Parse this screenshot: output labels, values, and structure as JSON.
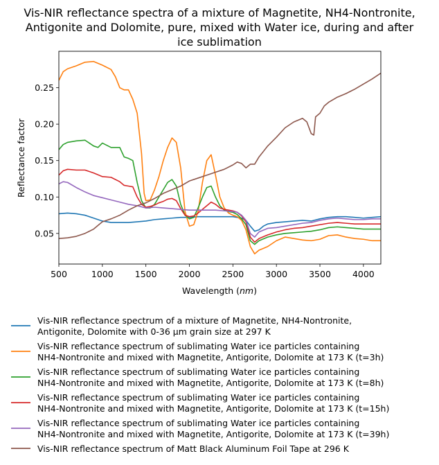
{
  "chart_data": {
    "type": "line",
    "title_lines": [
      "Vis-NIR reflectance spectra of a mixture of Magnetite, NH4-Nontronite,",
      "Antigonite and Dolomite, pure, mixed with Water ice, during and after",
      "ice sublimation"
    ],
    "xlabel": "Wavelength (nm)",
    "ylabel": "Reflectance factor",
    "xlim": [
      500,
      4200
    ],
    "ylim": [
      0.008,
      0.3
    ],
    "xticks": [
      500,
      1000,
      1500,
      2000,
      2500,
      3000,
      3500,
      4000
    ],
    "yticks": [
      0.05,
      0.1,
      0.15,
      0.2,
      0.25
    ],
    "ytick_labels": [
      "0.05",
      "0.10",
      "0.15",
      "0.20",
      "0.25"
    ],
    "grid": false,
    "legend_placement": "below",
    "series": [
      {
        "name_lines": [
          "Vis-NIR reflectance spectrum of a mixture of Magnetite, NH4-Nontronite,",
          "Antigonite, Dolomite with 0-36 µm grain size at 297 K"
        ],
        "color": "#1f77b4",
        "x": [
          500,
          600,
          700,
          800,
          900,
          1000,
          1100,
          1200,
          1300,
          1400,
          1500,
          1600,
          1700,
          1800,
          1900,
          2000,
          2100,
          2200,
          2300,
          2400,
          2500,
          2600,
          2650,
          2700,
          2750,
          2800,
          2850,
          2900,
          3000,
          3100,
          3200,
          3300,
          3400,
          3500,
          3600,
          3700,
          3800,
          3900,
          4000,
          4100,
          4200
        ],
        "y": [
          0.077,
          0.078,
          0.077,
          0.075,
          0.071,
          0.067,
          0.065,
          0.065,
          0.065,
          0.066,
          0.067,
          0.069,
          0.07,
          0.071,
          0.072,
          0.072,
          0.073,
          0.073,
          0.073,
          0.073,
          0.073,
          0.071,
          0.068,
          0.06,
          0.053,
          0.055,
          0.06,
          0.063,
          0.065,
          0.066,
          0.067,
          0.068,
          0.067,
          0.07,
          0.072,
          0.073,
          0.073,
          0.072,
          0.071,
          0.072,
          0.073
        ]
      },
      {
        "name_lines": [
          "Vis-NIR reflectance spectrum of sublimating Water ice particles containing",
          "NH4-Nontronite and mixed with Magnetite, Antigorite, Dolomite at 173 K (t=3h)"
        ],
        "color": "#ff7f0e",
        "x": [
          500,
          550,
          600,
          700,
          800,
          900,
          1000,
          1100,
          1150,
          1200,
          1250,
          1300,
          1350,
          1400,
          1450,
          1480,
          1500,
          1550,
          1600,
          1650,
          1700,
          1750,
          1800,
          1850,
          1900,
          1950,
          2000,
          2050,
          2100,
          2150,
          2200,
          2250,
          2300,
          2350,
          2400,
          2450,
          2500,
          2550,
          2600,
          2650,
          2700,
          2750,
          2800,
          2900,
          3000,
          3100,
          3200,
          3300,
          3400,
          3500,
          3600,
          3700,
          3800,
          3900,
          4000,
          4100,
          4200
        ],
        "y": [
          0.26,
          0.272,
          0.276,
          0.28,
          0.285,
          0.286,
          0.281,
          0.275,
          0.265,
          0.25,
          0.247,
          0.247,
          0.234,
          0.215,
          0.16,
          0.105,
          0.095,
          0.096,
          0.11,
          0.128,
          0.15,
          0.168,
          0.181,
          0.175,
          0.14,
          0.08,
          0.06,
          0.062,
          0.08,
          0.12,
          0.15,
          0.158,
          0.13,
          0.1,
          0.085,
          0.078,
          0.075,
          0.073,
          0.068,
          0.055,
          0.032,
          0.022,
          0.027,
          0.032,
          0.04,
          0.045,
          0.043,
          0.041,
          0.04,
          0.042,
          0.047,
          0.048,
          0.045,
          0.043,
          0.042,
          0.04,
          0.04
        ]
      },
      {
        "name_lines": [
          "Vis-NIR reflectance spectrum of sublimating Water ice particles containing",
          "NH4-Nontronite and mixed with Magnetite, Antigorite, Dolomite at 173 K (t=8h)"
        ],
        "color": "#2ca02c",
        "x": [
          500,
          550,
          600,
          700,
          800,
          900,
          950,
          1000,
          1100,
          1200,
          1250,
          1300,
          1350,
          1400,
          1450,
          1500,
          1550,
          1600,
          1650,
          1700,
          1750,
          1800,
          1850,
          1900,
          1950,
          2000,
          2050,
          2100,
          2150,
          2200,
          2250,
          2300,
          2350,
          2400,
          2450,
          2500,
          2550,
          2600,
          2650,
          2700,
          2750,
          2800,
          2900,
          3000,
          3100,
          3200,
          3300,
          3400,
          3500,
          3600,
          3700,
          3800,
          3900,
          4000,
          4100,
          4200
        ],
        "y": [
          0.165,
          0.172,
          0.175,
          0.177,
          0.178,
          0.17,
          0.168,
          0.174,
          0.168,
          0.168,
          0.155,
          0.153,
          0.15,
          0.12,
          0.095,
          0.085,
          0.085,
          0.09,
          0.1,
          0.11,
          0.12,
          0.124,
          0.115,
          0.09,
          0.075,
          0.07,
          0.072,
          0.085,
          0.1,
          0.113,
          0.115,
          0.1,
          0.088,
          0.082,
          0.08,
          0.079,
          0.076,
          0.07,
          0.062,
          0.04,
          0.035,
          0.04,
          0.045,
          0.048,
          0.05,
          0.051,
          0.052,
          0.053,
          0.055,
          0.058,
          0.059,
          0.058,
          0.057,
          0.056,
          0.056,
          0.056
        ]
      },
      {
        "name_lines": [
          "Vis-NIR reflectance spectrum of sublimating Water ice particles containing",
          "NH4-Nontronite and mixed with Magnetite, Antigorite, Dolomite at 173 K (t=15h)"
        ],
        "color": "#d62728",
        "x": [
          500,
          550,
          600,
          700,
          800,
          900,
          1000,
          1100,
          1200,
          1250,
          1300,
          1350,
          1400,
          1450,
          1500,
          1550,
          1600,
          1650,
          1700,
          1750,
          1800,
          1850,
          1900,
          1950,
          2000,
          2050,
          2100,
          2150,
          2200,
          2250,
          2300,
          2350,
          2400,
          2450,
          2500,
          2550,
          2600,
          2650,
          2700,
          2750,
          2800,
          2900,
          3000,
          3100,
          3200,
          3300,
          3400,
          3500,
          3600,
          3700,
          3800,
          3900,
          4000,
          4100,
          4200
        ],
        "y": [
          0.13,
          0.136,
          0.138,
          0.137,
          0.137,
          0.133,
          0.128,
          0.127,
          0.121,
          0.116,
          0.115,
          0.114,
          0.1,
          0.09,
          0.086,
          0.087,
          0.089,
          0.092,
          0.094,
          0.097,
          0.098,
          0.095,
          0.084,
          0.075,
          0.073,
          0.074,
          0.078,
          0.083,
          0.088,
          0.093,
          0.09,
          0.085,
          0.083,
          0.082,
          0.081,
          0.079,
          0.074,
          0.066,
          0.045,
          0.038,
          0.043,
          0.048,
          0.052,
          0.055,
          0.057,
          0.058,
          0.06,
          0.062,
          0.064,
          0.065,
          0.064,
          0.063,
          0.063,
          0.063,
          0.063
        ]
      },
      {
        "name_lines": [
          "Vis-NIR reflectance spectrum of sublimating Water ice particles containing",
          "NH4-Nontronite and mixed with Magnetite, Antigorite, Dolomite at 173 K (t=39h)"
        ],
        "color": "#9467bd",
        "x": [
          500,
          550,
          600,
          700,
          800,
          900,
          1000,
          1100,
          1200,
          1300,
          1400,
          1500,
          1600,
          1700,
          1800,
          1900,
          2000,
          2100,
          2200,
          2300,
          2400,
          2500,
          2550,
          2600,
          2650,
          2700,
          2750,
          2800,
          2900,
          3000,
          3100,
          3200,
          3300,
          3400,
          3500,
          3600,
          3700,
          3800,
          3900,
          4000,
          4100,
          4200
        ],
        "y": [
          0.118,
          0.121,
          0.12,
          0.113,
          0.107,
          0.102,
          0.099,
          0.096,
          0.093,
          0.09,
          0.088,
          0.085,
          0.086,
          0.085,
          0.084,
          0.083,
          0.082,
          0.082,
          0.082,
          0.082,
          0.081,
          0.08,
          0.079,
          0.075,
          0.068,
          0.05,
          0.045,
          0.052,
          0.057,
          0.058,
          0.06,
          0.062,
          0.064,
          0.065,
          0.068,
          0.07,
          0.071,
          0.07,
          0.069,
          0.069,
          0.07,
          0.07
        ]
      },
      {
        "name_lines": [
          "Vis-NIR reflectance spectrum of Matt Black Aluminum Foil Tape at 296 K"
        ],
        "color": "#8c564b",
        "x": [
          500,
          600,
          700,
          800,
          900,
          1000,
          1100,
          1200,
          1300,
          1400,
          1500,
          1600,
          1700,
          1800,
          1900,
          2000,
          2100,
          2200,
          2300,
          2400,
          2500,
          2550,
          2600,
          2650,
          2700,
          2750,
          2800,
          2900,
          3000,
          3100,
          3200,
          3300,
          3350,
          3400,
          3430,
          3450,
          3500,
          3550,
          3600,
          3700,
          3800,
          3900,
          4000,
          4100,
          4200
        ],
        "y": [
          0.043,
          0.044,
          0.046,
          0.05,
          0.056,
          0.066,
          0.07,
          0.075,
          0.082,
          0.088,
          0.092,
          0.098,
          0.105,
          0.11,
          0.115,
          0.122,
          0.126,
          0.13,
          0.134,
          0.138,
          0.144,
          0.148,
          0.146,
          0.14,
          0.145,
          0.145,
          0.155,
          0.17,
          0.182,
          0.195,
          0.203,
          0.208,
          0.203,
          0.187,
          0.185,
          0.21,
          0.215,
          0.225,
          0.23,
          0.237,
          0.242,
          0.248,
          0.255,
          0.262,
          0.27
        ]
      }
    ]
  }
}
